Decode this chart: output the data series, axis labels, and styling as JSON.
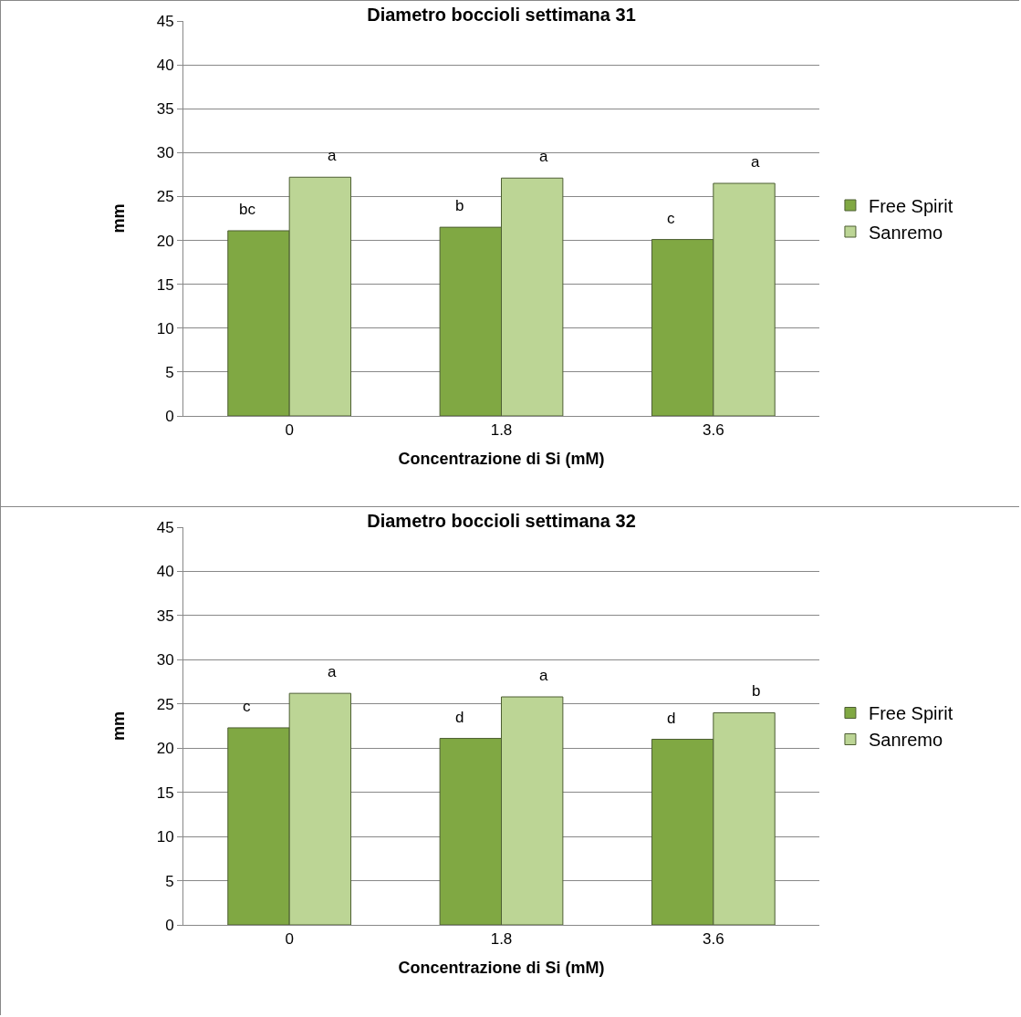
{
  "chart_data": [
    {
      "type": "bar",
      "title": "Diametro boccioli settimana 31",
      "xlabel": "Concentrazione di Si (mM)",
      "ylabel": "mm",
      "categories": [
        "0",
        "1.8",
        "3.6"
      ],
      "series": [
        {
          "name": "Free Spirit",
          "color": "#80a843",
          "values": [
            21.1,
            21.5,
            20.1
          ]
        },
        {
          "name": "Sanremo",
          "color": "#bcd595",
          "values": [
            27.2,
            27.1,
            26.5
          ]
        }
      ],
      "ylim": [
        0,
        45
      ],
      "yticks": [
        0,
        5,
        10,
        15,
        20,
        25,
        30,
        35,
        40,
        45
      ],
      "grid": "y",
      "legend": "right",
      "annotations": [
        {
          "text": "bc",
          "x": "0",
          "y": 21.1
        },
        {
          "text": "a",
          "x": "0",
          "y": 27.2
        },
        {
          "text": "b",
          "x": "1.8",
          "y": 21.5
        },
        {
          "text": "a",
          "x": "1.8",
          "y": 27.1
        },
        {
          "text": "c",
          "x": "3.6",
          "y": 20.1
        },
        {
          "text": "a",
          "x": "3.6",
          "y": 26.5
        }
      ]
    },
    {
      "type": "bar",
      "title": "Diametro boccioli settimana 32",
      "xlabel": "Concentrazione di Si (mM)",
      "ylabel": "mm",
      "categories": [
        "0",
        "1.8",
        "3.6"
      ],
      "series": [
        {
          "name": "Free Spirit",
          "color": "#80a843",
          "values": [
            22.3,
            21.1,
            21.0
          ]
        },
        {
          "name": "Sanremo",
          "color": "#bcd595",
          "values": [
            26.2,
            25.8,
            24.0
          ]
        }
      ],
      "ylim": [
        0,
        45
      ],
      "yticks": [
        0,
        5,
        10,
        15,
        20,
        25,
        30,
        35,
        40,
        45
      ],
      "grid": "y",
      "legend": "right",
      "annotations": [
        {
          "text": "c",
          "x": "0",
          "y": 22.3
        },
        {
          "text": "a",
          "x": "0",
          "y": 26.2
        },
        {
          "text": "d",
          "x": "1.8",
          "y": 21.1
        },
        {
          "text": "a",
          "x": "1.8",
          "y": 25.8
        },
        {
          "text": "d",
          "x": "3.6",
          "y": 21.0
        },
        {
          "text": "b",
          "x": "3.6",
          "y": 24.0
        }
      ]
    }
  ]
}
